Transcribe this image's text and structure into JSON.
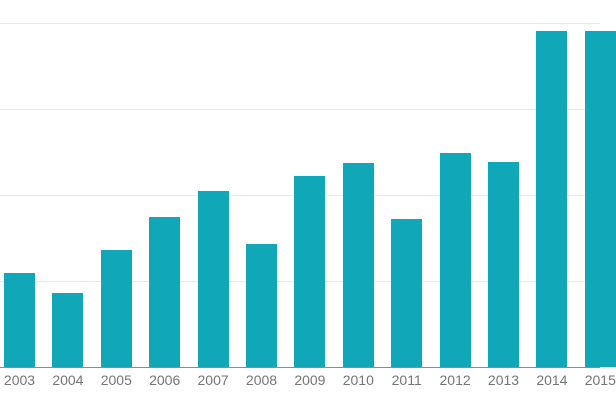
{
  "chart_data": {
    "type": "bar",
    "title": "",
    "xlabel": "",
    "ylabel": "",
    "categories": [
      "2003",
      "2004",
      "2005",
      "2006",
      "2007",
      "2008",
      "2009",
      "2010",
      "2011",
      "2012",
      "2013",
      "2014",
      "2015"
    ],
    "values": [
      1.09,
      0.86,
      1.36,
      1.74,
      2.05,
      1.43,
      2.22,
      2.37,
      1.72,
      2.49,
      2.38,
      3.91,
      3.91
    ],
    "value_units": "gridline-intervals (y-axis tick labels are cropped out of view)",
    "ylim": [
      0,
      4.27
    ],
    "gridline_values": [
      1,
      2,
      3,
      4
    ],
    "grid": true,
    "legend": "none",
    "clipped_edges": "left y-axis labels cropped; last bar (2015) and its label clipped at right edge",
    "colors": {
      "bar": "#10a8b8",
      "gridline": "#e9e9e9",
      "axis_line": "#8c8c8c",
      "tick_label": "#757575",
      "background": "#ffffff"
    }
  }
}
